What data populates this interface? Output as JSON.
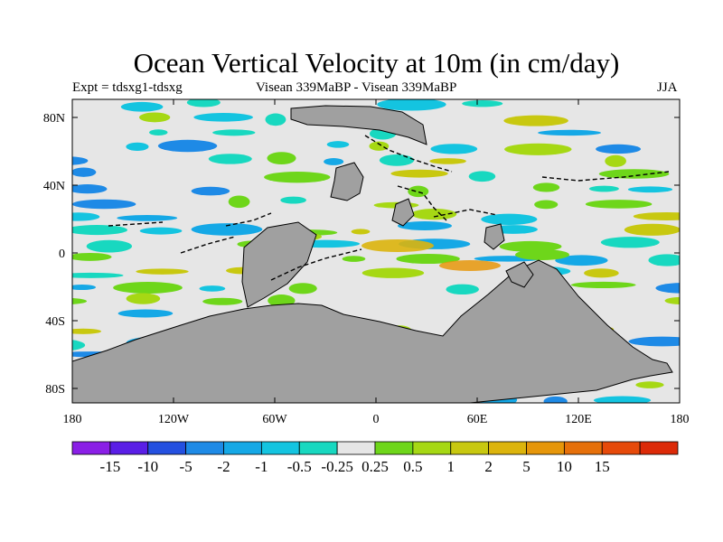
{
  "title": "Ocean Vertical Velocity at 10m (in cm/day)",
  "subtitle_left": "Expt = tdsxg1-tdsxg",
  "subtitle_center": "Visean 339MaBP - Visean 339MaBP",
  "subtitle_right": "JJA",
  "axes": {
    "x_ticks": [
      "180",
      "120W",
      "60W",
      "0",
      "60E",
      "120E",
      "180"
    ],
    "y_ticks": [
      "80N",
      "40N",
      "0",
      "40S",
      "80S"
    ]
  },
  "colorbar": {
    "colors": [
      "#8a1fe6",
      "#5a1ee6",
      "#2450e0",
      "#1e8ae6",
      "#15a8e6",
      "#14c4e0",
      "#18d8c0",
      "#e6e6e6",
      "#6ed61a",
      "#a6d814",
      "#c8c810",
      "#dcb40c",
      "#e6960a",
      "#e6700a",
      "#e64a0a",
      "#dc2a08"
    ],
    "labels": [
      "-15",
      "-10",
      "-5",
      "-2",
      "-1",
      "-0.5",
      "-0.25",
      "0.25",
      "0.5",
      "1",
      "2",
      "5",
      "10",
      "15"
    ]
  },
  "map_colors": {
    "land": "#a0a0a0",
    "ocean_neutral": "#e6e6e6"
  }
}
